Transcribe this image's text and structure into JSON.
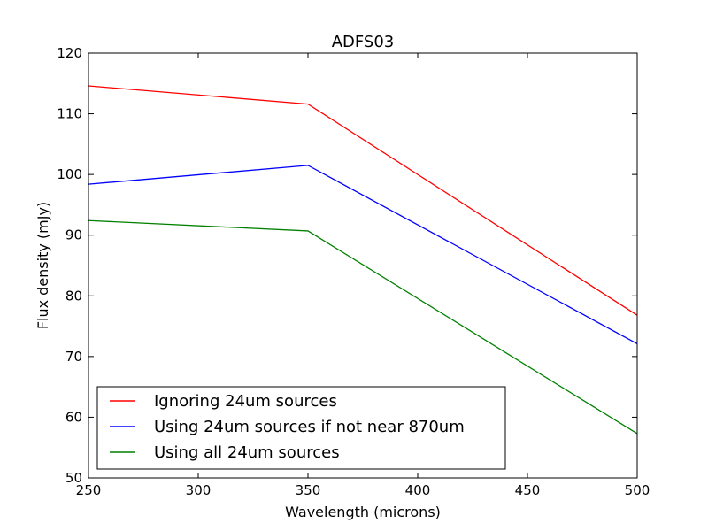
{
  "chart_data": {
    "type": "line",
    "title": "ADFS03",
    "xlabel": "Wavelength (microns)",
    "ylabel": "Flux density (mJy)",
    "x": [
      250,
      350,
      500
    ],
    "xlim": [
      250,
      500
    ],
    "ylim": [
      50,
      120
    ],
    "xticks": [
      250,
      300,
      350,
      400,
      450,
      500
    ],
    "yticks": [
      50,
      60,
      70,
      80,
      90,
      100,
      110,
      120
    ],
    "grid": false,
    "legend_position": "lower-left",
    "series": [
      {
        "name": "Ignoring 24um sources",
        "color": "#ff0000",
        "values": [
          114.6,
          111.6,
          76.8
        ]
      },
      {
        "name": "Using 24um sources if not near 870um",
        "color": "#0000ff",
        "values": [
          98.4,
          101.5,
          72.1
        ]
      },
      {
        "name": "Using all 24um sources",
        "color": "#008000",
        "values": [
          92.4,
          90.7,
          57.3
        ]
      }
    ]
  }
}
